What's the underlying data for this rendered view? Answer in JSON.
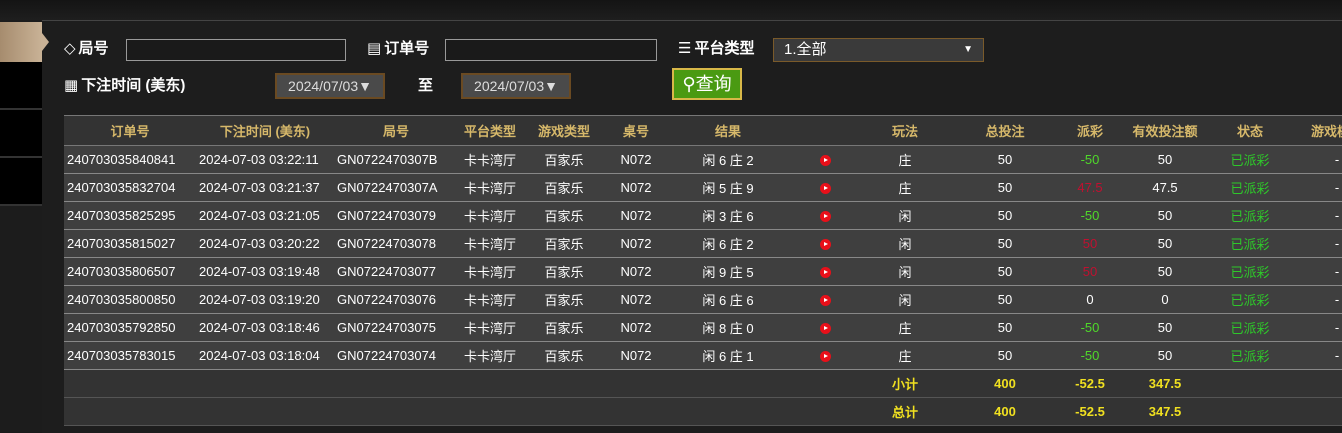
{
  "filters": {
    "round_label": "局号",
    "order_label": "订单号",
    "platform_label": "平台类型",
    "platform_value": "1.全部",
    "time_label": "下注时间 (美东)",
    "date_from": "2024/07/03▼",
    "to_label": "至",
    "date_to": "2024/07/03▼",
    "query_label": "查询"
  },
  "table": {
    "headers": [
      "订单号",
      "下注时间 (美东)",
      "局号",
      "平台类型",
      "游戏类型",
      "桌号",
      "结果",
      "",
      "玩法",
      "总投注",
      "派彩",
      "有效投注额",
      "状态",
      "游戏模式"
    ],
    "rows": [
      [
        "240703035840841",
        "2024-07-03 03:22:11",
        "GN0722470307B",
        "卡卡湾厅",
        "百家乐",
        "N072",
        "闲 6 庄 2",
        "",
        "庄",
        "50",
        "-50",
        "50",
        "已派彩",
        "-"
      ],
      [
        "240703035832704",
        "2024-07-03 03:21:37",
        "GN0722470307A",
        "卡卡湾厅",
        "百家乐",
        "N072",
        "闲 5 庄 9",
        "",
        "庄",
        "50",
        "47.5",
        "47.5",
        "已派彩",
        "-"
      ],
      [
        "240703035825295",
        "2024-07-03 03:21:05",
        "GN07224703079",
        "卡卡湾厅",
        "百家乐",
        "N072",
        "闲 3 庄 6",
        "",
        "闲",
        "50",
        "-50",
        "50",
        "已派彩",
        "-"
      ],
      [
        "240703035815027",
        "2024-07-03 03:20:22",
        "GN07224703078",
        "卡卡湾厅",
        "百家乐",
        "N072",
        "闲 6 庄 2",
        "",
        "闲",
        "50",
        "50",
        "50",
        "已派彩",
        "-"
      ],
      [
        "240703035806507",
        "2024-07-03 03:19:48",
        "GN07224703077",
        "卡卡湾厅",
        "百家乐",
        "N072",
        "闲 9 庄 5",
        "",
        "闲",
        "50",
        "50",
        "50",
        "已派彩",
        "-"
      ],
      [
        "240703035800850",
        "2024-07-03 03:19:20",
        "GN07224703076",
        "卡卡湾厅",
        "百家乐",
        "N072",
        "闲 6 庄 6",
        "",
        "闲",
        "50",
        "0",
        "0",
        "已派彩",
        "-"
      ],
      [
        "240703035792850",
        "2024-07-03 03:18:46",
        "GN07224703075",
        "卡卡湾厅",
        "百家乐",
        "N072",
        "闲 8 庄 0",
        "",
        "庄",
        "50",
        "-50",
        "50",
        "已派彩",
        "-"
      ],
      [
        "240703035783015",
        "2024-07-03 03:18:04",
        "GN07224703074",
        "卡卡湾厅",
        "百家乐",
        "N072",
        "闲 6 庄 1",
        "",
        "庄",
        "50",
        "-50",
        "50",
        "已派彩",
        "-"
      ]
    ],
    "subtotal": {
      "label": "小计",
      "total_bet": "400",
      "payout": "-52.5",
      "valid_bet": "347.5"
    },
    "total": {
      "label": "总计",
      "total_bet": "400",
      "payout": "-52.5",
      "valid_bet": "347.5"
    }
  },
  "colors": {
    "negative": "#4fd82a",
    "positive": "#c01030",
    "status": "#2ec82a",
    "header": "#d6b86a",
    "sum": "#f0e020"
  }
}
